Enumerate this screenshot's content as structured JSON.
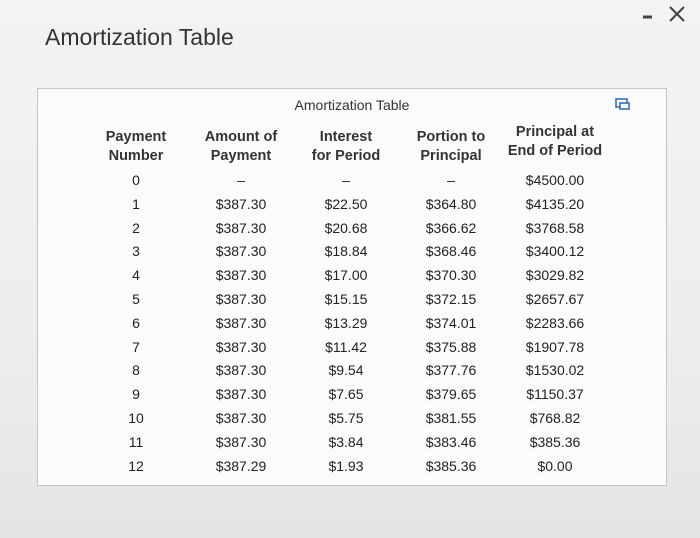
{
  "header": {
    "title": "Amortization Table"
  },
  "table": {
    "caption": "Amortization Table",
    "columns": [
      [
        "Payment",
        "Number"
      ],
      [
        "Amount of",
        "Payment"
      ],
      [
        "Interest",
        "for Period"
      ],
      [
        "Portion to",
        "Principal"
      ],
      [
        "Principal at",
        "End of Period"
      ]
    ],
    "rows": [
      [
        "0",
        "–",
        "–",
        "–",
        "$4500.00"
      ],
      [
        "1",
        "$387.30",
        "$22.50",
        "$364.80",
        "$4135.20"
      ],
      [
        "2",
        "$387.30",
        "$20.68",
        "$366.62",
        "$3768.58"
      ],
      [
        "3",
        "$387.30",
        "$18.84",
        "$368.46",
        "$3400.12"
      ],
      [
        "4",
        "$387.30",
        "$17.00",
        "$370.30",
        "$3029.82"
      ],
      [
        "5",
        "$387.30",
        "$15.15",
        "$372.15",
        "$2657.67"
      ],
      [
        "6",
        "$387.30",
        "$13.29",
        "$374.01",
        "$2283.66"
      ],
      [
        "7",
        "$387.30",
        "$11.42",
        "$375.88",
        "$1907.78"
      ],
      [
        "8",
        "$387.30",
        "$9.54",
        "$377.76",
        "$1530.02"
      ],
      [
        "9",
        "$387.30",
        "$7.65",
        "$379.65",
        "$1150.37"
      ],
      [
        "10",
        "$387.30",
        "$5.75",
        "$381.55",
        "$768.82"
      ],
      [
        "11",
        "$387.30",
        "$3.84",
        "$383.46",
        "$385.36"
      ],
      [
        "12",
        "$387.29",
        "$1.93",
        "$385.36",
        "$0.00"
      ]
    ]
  }
}
